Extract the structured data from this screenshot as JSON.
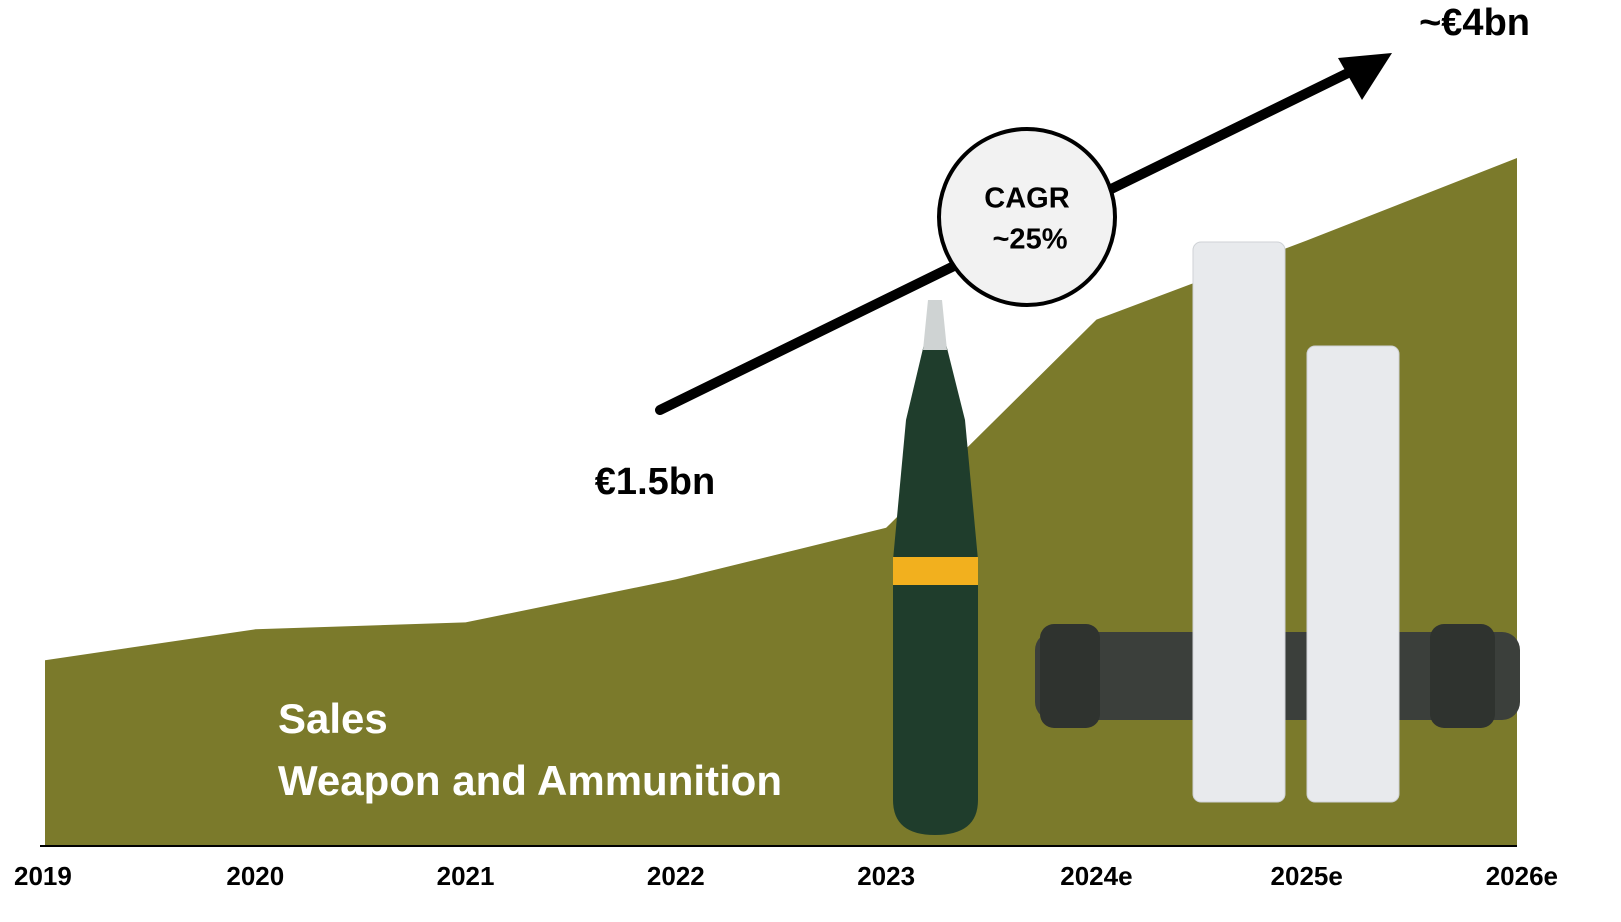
{
  "chart_data": {
    "type": "area",
    "categories": [
      "2019",
      "2020",
      "2021",
      "2022",
      "2023",
      "2024e",
      "2025e",
      "2026e"
    ],
    "values": [
      1.08,
      1.26,
      1.3,
      1.55,
      1.85,
      3.06,
      3.52,
      4.0
    ],
    "color": "#7b7a2b",
    "ylim": [
      0,
      4.5
    ],
    "series_label": [
      "Sales",
      "Weapon and Ammunition"
    ],
    "annotations": {
      "start": "€1.5bn",
      "end": "~€4bn",
      "cagr": [
        "CAGR",
        "~25%"
      ]
    }
  }
}
